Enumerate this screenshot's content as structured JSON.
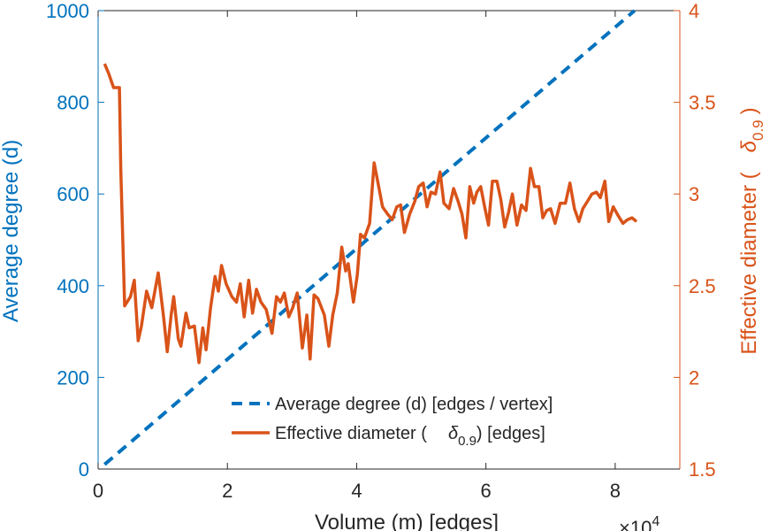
{
  "chart_data": {
    "type": "line",
    "xlabel": "Volume (m) [edges]",
    "x_multiplier_label": "×10",
    "x_multiplier_exp": "4",
    "xlim": [
      0,
      90000
    ],
    "xticks": [
      0,
      20000,
      40000,
      60000,
      80000
    ],
    "xtick_labels": [
      "0",
      "2",
      "4",
      "6",
      "8"
    ],
    "left_axis": {
      "label": "Average degree (d)",
      "ylim": [
        0,
        1000
      ],
      "ticks": [
        0,
        200,
        400,
        600,
        800,
        1000
      ],
      "tick_labels": [
        "0",
        "200",
        "400",
        "600",
        "800",
        "1000"
      ],
      "color": "#0072BD"
    },
    "right_axis": {
      "label_pre": "Effective diameter (",
      "label_sym": "δ",
      "label_sub": "0.9",
      "label_post": ")",
      "ylim": [
        1.5,
        4
      ],
      "ticks": [
        1.5,
        2,
        2.5,
        3,
        3.5,
        4
      ],
      "tick_labels": [
        "1.5",
        "2",
        "2.5",
        "3",
        "3.5",
        "4"
      ],
      "color": "#D95319"
    },
    "series": [
      {
        "name": "Average degree (d) [edges / vertex]",
        "axis": "left",
        "style": "dashed",
        "color": "#0072BD",
        "x": [
          1000,
          83000
        ],
        "y": [
          10,
          1000
        ]
      },
      {
        "name": "Effective diameter (δ0.9) [edges]",
        "axis": "right",
        "style": "solid",
        "color": "#D95319",
        "x": [
          1000,
          1600,
          2400,
          3300,
          3500,
          4100,
          5000,
          5600,
          6200,
          6700,
          7500,
          8300,
          9300,
          10100,
          10700,
          11300,
          11700,
          12400,
          12800,
          13600,
          14100,
          14900,
          15600,
          16200,
          16700,
          17400,
          18100,
          18600,
          19100,
          19800,
          20700,
          21400,
          22000,
          22600,
          23300,
          23900,
          24500,
          25200,
          26000,
          26900,
          27600,
          28200,
          28800,
          29500,
          30100,
          30800,
          31600,
          32300,
          32800,
          33400,
          34000,
          35000,
          35700,
          36300,
          37000,
          37700,
          38300,
          38700,
          39500,
          40100,
          40600,
          41200,
          42000,
          42700,
          43300,
          44000,
          44800,
          45500,
          46200,
          46800,
          47400,
          48200,
          49000,
          49600,
          50300,
          50900,
          51500,
          52200,
          52900,
          53500,
          54300,
          55000,
          55700,
          56300,
          56900,
          57500,
          58100,
          58600,
          59200,
          59800,
          60400,
          61000,
          61700,
          62300,
          62900,
          63500,
          64100,
          64800,
          65500,
          66200,
          66900,
          67500,
          68200,
          68800,
          69400,
          70000,
          70700,
          71500,
          72300,
          73000,
          73700,
          74400,
          75000,
          75700,
          76400,
          77100,
          77700,
          78400,
          79000,
          79700,
          80500,
          81200,
          81900,
          82600,
          83300
        ],
        "y": [
          3.71,
          3.66,
          3.58,
          3.58,
          3.14,
          2.39,
          2.44,
          2.53,
          2.2,
          2.28,
          2.47,
          2.38,
          2.57,
          2.34,
          2.14,
          2.34,
          2.44,
          2.21,
          2.17,
          2.35,
          2.27,
          2.28,
          2.08,
          2.27,
          2.15,
          2.38,
          2.55,
          2.47,
          2.61,
          2.51,
          2.44,
          2.41,
          2.51,
          2.33,
          2.53,
          2.35,
          2.48,
          2.41,
          2.37,
          2.24,
          2.44,
          2.41,
          2.46,
          2.33,
          2.38,
          2.46,
          2.16,
          2.34,
          2.1,
          2.45,
          2.43,
          2.34,
          2.17,
          2.34,
          2.46,
          2.71,
          2.58,
          2.62,
          2.41,
          2.56,
          2.78,
          2.76,
          2.84,
          3.17,
          3.06,
          2.93,
          2.89,
          2.86,
          2.93,
          2.94,
          2.79,
          2.89,
          2.96,
          3.04,
          3.06,
          2.93,
          3.01,
          3.0,
          3.12,
          2.95,
          2.92,
          3.03,
          2.96,
          2.89,
          2.76,
          3.04,
          2.95,
          3.01,
          3.04,
          2.93,
          2.83,
          3.07,
          3.07,
          2.97,
          2.82,
          2.9,
          3.0,
          2.83,
          2.94,
          2.91,
          3.14,
          3.04,
          3.04,
          2.87,
          2.91,
          2.92,
          2.84,
          2.95,
          2.95,
          3.06,
          2.92,
          2.85,
          2.92,
          2.96,
          3.0,
          3.01,
          2.98,
          3.07,
          2.85,
          2.93,
          2.88,
          2.84,
          2.86,
          2.87,
          2.85
        ]
      }
    ],
    "legend": {
      "position": "bottom-right",
      "entries": [
        {
          "pre": "Average degree (d) [edges / vertex]",
          "sym": "",
          "sub": "",
          "post": ""
        },
        {
          "pre": "Effective diameter (",
          "sym": "δ",
          "sub": "0.9",
          "post": ") [edges]"
        }
      ]
    }
  }
}
